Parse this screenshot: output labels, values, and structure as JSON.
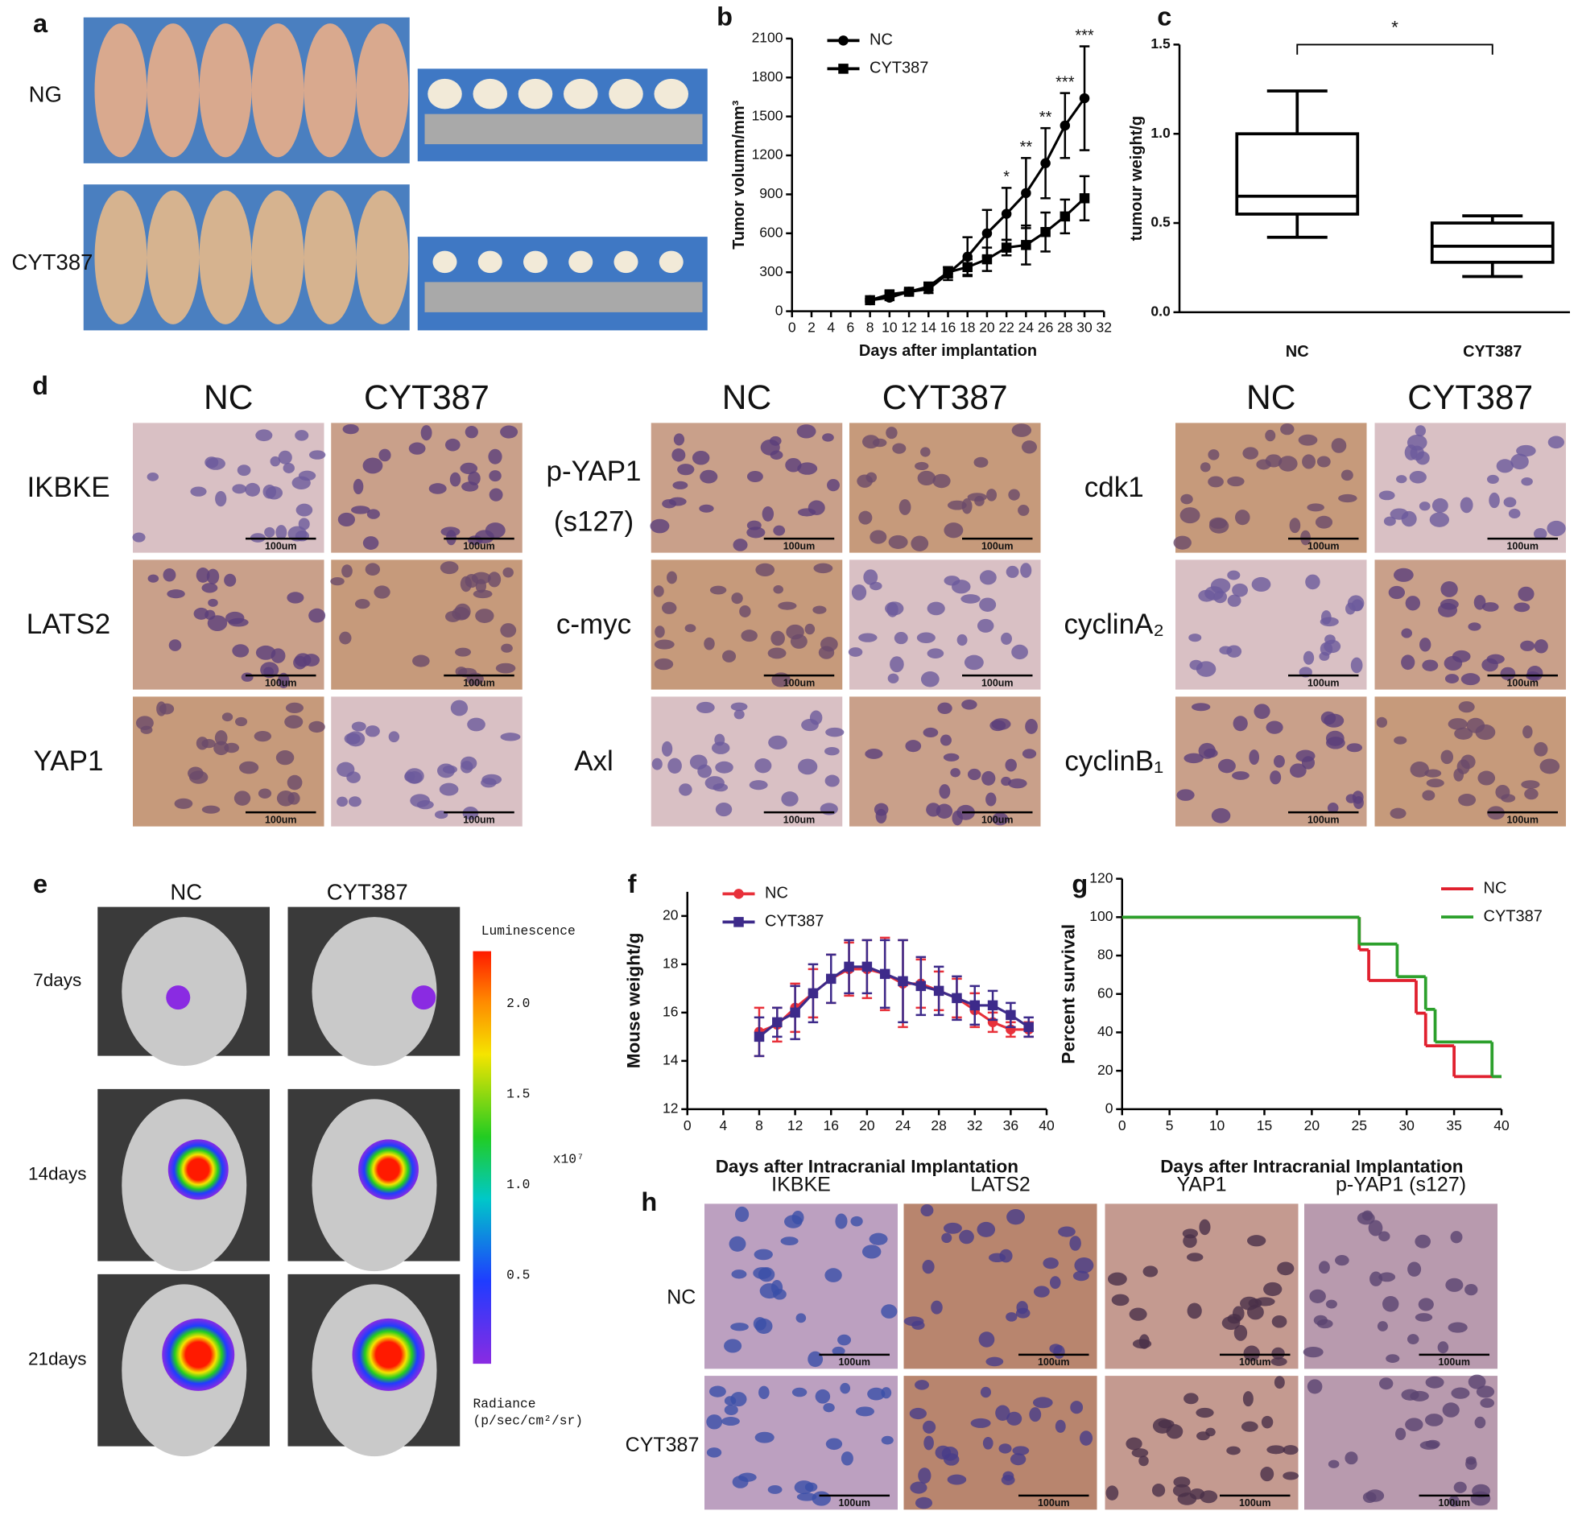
{
  "panel_labels": [
    "a",
    "b",
    "c",
    "d",
    "e",
    "f",
    "g",
    "h"
  ],
  "panel_a": {
    "row_labels": [
      "NG",
      "CYT387"
    ]
  },
  "scale_bar": "100um",
  "panel_d": {
    "groups": [
      {
        "columns": [
          "NC",
          "CYT387"
        ],
        "rows": [
          [
            "IKBKE"
          ],
          [
            "LATS2"
          ],
          [
            "YAP1"
          ]
        ]
      },
      {
        "columns": [
          "NC",
          "CYT387"
        ],
        "rows": [
          [
            "p-YAP1",
            "(s127)"
          ],
          [
            "c-myc"
          ],
          [
            "Axl"
          ]
        ]
      },
      {
        "columns": [
          "NC",
          "CYT387"
        ],
        "rows": [
          [
            "cdk1"
          ],
          [
            "cyclinA₂"
          ],
          [
            "cyclinB₁"
          ]
        ]
      }
    ]
  },
  "panel_e": {
    "columns": [
      "NC",
      "CYT387"
    ],
    "rows": [
      "7days",
      "14days",
      "21days"
    ],
    "colorbar": {
      "title": "Luminescence",
      "tick_labels": [
        "2.0",
        "1.5",
        "1.0",
        "0.5"
      ],
      "multiplier": "x10⁷",
      "unit_lines": [
        "Radiance",
        "(p/sec/cm²/sr)"
      ]
    }
  },
  "panel_h": {
    "columns": [
      "IKBKE",
      "LATS2",
      "YAP1",
      "p-YAP1 (s127)"
    ],
    "rows": [
      "NC",
      "CYT387"
    ]
  },
  "chart_data": [
    {
      "type": "line",
      "ylabel": "Tumor volumn/mm³",
      "xlabel": "Days after implantation",
      "x": [
        8,
        10,
        12,
        14,
        16,
        18,
        20,
        22,
        24,
        26,
        28,
        30
      ],
      "series": [
        {
          "name": "NC",
          "color": "#000000",
          "marker": "circle",
          "values": [
            85,
            105,
            150,
            170,
            290,
            420,
            600,
            750,
            910,
            1140,
            1430,
            1640
          ],
          "errors": [
            10,
            20,
            15,
            30,
            50,
            150,
            180,
            200,
            270,
            270,
            250,
            400
          ]
        },
        {
          "name": "CYT387",
          "color": "#000000",
          "marker": "square",
          "values": [
            85,
            130,
            150,
            190,
            300,
            340,
            400,
            490,
            510,
            610,
            730,
            870
          ],
          "errors": [
            10,
            20,
            15,
            30,
            40,
            60,
            90,
            60,
            150,
            150,
            130,
            170
          ]
        }
      ],
      "significance": {
        "x": [
          22,
          24,
          26,
          28,
          30
        ],
        "labels": [
          "*",
          "**",
          "**",
          "***",
          "***"
        ]
      },
      "xlim": [
        0,
        32
      ],
      "xticks": [
        0,
        2,
        4,
        6,
        8,
        10,
        12,
        14,
        16,
        18,
        20,
        22,
        24,
        26,
        28,
        30,
        32
      ],
      "ylim": [
        0,
        2100
      ],
      "yticks": [
        0,
        300,
        600,
        900,
        1200,
        1500,
        1800,
        2100
      ],
      "legend": "upper left"
    },
    {
      "type": "box",
      "ylabel": "tumour weight/g",
      "categories": [
        "NC",
        "CYT387"
      ],
      "boxes": [
        {
          "min": 0.42,
          "q1": 0.55,
          "median": 0.65,
          "q3": 1.0,
          "max": 1.24
        },
        {
          "min": 0.2,
          "q1": 0.28,
          "median": 0.37,
          "q3": 0.5,
          "max": 0.54
        }
      ],
      "significance": "*",
      "color": "#000000",
      "ylim": [
        0,
        1.5
      ],
      "yticks": [
        {
          "value": 0,
          "label": "0.0"
        },
        0.5,
        {
          "value": 1,
          "label": "1.0"
        },
        1.5
      ]
    },
    {
      "type": "line",
      "ylabel": "Mouse weight/g",
      "xlabel": "Days after Intracranial Implantation",
      "x": [
        8,
        10,
        12,
        14,
        16,
        18,
        20,
        22,
        24,
        26,
        28,
        30,
        32,
        34,
        36,
        38
      ],
      "series": [
        {
          "name": "NC",
          "color": "#e8303a",
          "marker": "circle",
          "values": [
            15.2,
            15.5,
            16.2,
            16.8,
            17.4,
            17.8,
            17.8,
            17.6,
            17.2,
            17.2,
            16.9,
            16.6,
            16.1,
            15.6,
            15.3,
            15.3
          ],
          "errors": [
            1.0,
            0.7,
            1.0,
            1.0,
            1.0,
            1.1,
            1.2,
            1.5,
            1.8,
            1.0,
            0.8,
            0.8,
            0.7,
            0.4,
            0.3,
            0.3
          ]
        },
        {
          "name": "CYT387",
          "color": "#3d2a8a",
          "marker": "square",
          "values": [
            15.0,
            15.6,
            16.0,
            16.8,
            17.4,
            17.9,
            17.9,
            17.6,
            17.3,
            17.1,
            16.9,
            16.6,
            16.3,
            16.3,
            15.9,
            15.4
          ],
          "errors": [
            0.8,
            0.6,
            1.1,
            1.2,
            1.0,
            1.1,
            1.1,
            1.4,
            1.7,
            1.2,
            1.0,
            0.9,
            0.8,
            0.6,
            0.5,
            0.4
          ]
        }
      ],
      "xlim": [
        0,
        40
      ],
      "xticks": [
        0,
        4,
        8,
        12,
        16,
        20,
        24,
        28,
        32,
        36,
        40
      ],
      "ylim": [
        12,
        21
      ],
      "yticks": [
        12,
        14,
        16,
        18,
        20
      ],
      "legend": "upper left"
    },
    {
      "type": "step",
      "ylabel": "Percent survival",
      "xlabel": "Days after Intracranial Implantation",
      "series": [
        {
          "name": "NC",
          "color": "#e0202e",
          "x": [
            0,
            25,
            26,
            31,
            32,
            35,
            40
          ],
          "values": [
            100,
            83,
            67,
            50,
            33,
            17,
            17
          ]
        },
        {
          "name": "CYT387",
          "color": "#2ca02c",
          "x": [
            0,
            25,
            29,
            32,
            33,
            39,
            40
          ],
          "values": [
            100,
            86,
            69,
            52,
            35,
            17,
            17
          ]
        }
      ],
      "xlim": [
        0,
        40
      ],
      "xticks": [
        0,
        5,
        10,
        15,
        20,
        25,
        30,
        35,
        40
      ],
      "ylim": [
        0,
        120
      ],
      "yticks": [
        0,
        20,
        40,
        60,
        80,
        100,
        120
      ],
      "legend": "upper right"
    }
  ]
}
